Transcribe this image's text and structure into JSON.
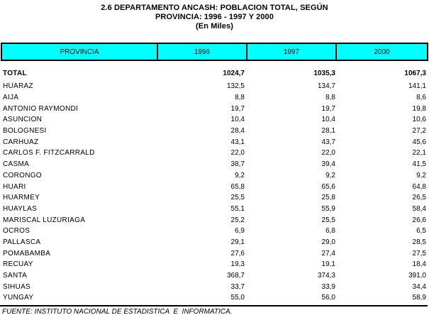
{
  "title": {
    "line1": "2.6 DEPARTAMENTO ANCASH: POBLACION TOTAL, SEGÚN",
    "line2": "PROVINCIA: 1996 - 1997 Y 2000",
    "line3": "(En Miles)"
  },
  "table": {
    "header_bg": "#00FFFF",
    "columns": [
      "PROVINCIA",
      "1996",
      "1997",
      "2000"
    ],
    "total_row": {
      "label": "TOTAL",
      "values": [
        "1024,7",
        "1035,3",
        "1067,3"
      ]
    },
    "rows": [
      {
        "label": "HUARAZ",
        "values": [
          "132,5",
          "134,7",
          "141,1"
        ]
      },
      {
        "label": "AIJA",
        "values": [
          "8,8",
          "8,8",
          "8,6"
        ]
      },
      {
        "label": "ANTONIO RAYMONDI",
        "values": [
          "19,7",
          "19,7",
          "19,8"
        ]
      },
      {
        "label": "ASUNCION",
        "values": [
          "10,4",
          "10,4",
          "10,6"
        ]
      },
      {
        "label": "BOLOGNESI",
        "values": [
          "28,4",
          "28,1",
          "27,2"
        ]
      },
      {
        "label": "CARHUAZ",
        "values": [
          "43,1",
          "43,7",
          "45,6"
        ]
      },
      {
        "label": "CARLOS F. FITZCARRALD",
        "values": [
          "22,0",
          "22,0",
          "22,1"
        ]
      },
      {
        "label": "CASMA",
        "values": [
          "38,7",
          "39,4",
          "41,5"
        ]
      },
      {
        "label": "CORONGO",
        "values": [
          "9,2",
          "9,2",
          "9,2"
        ]
      },
      {
        "label": "HUARI",
        "values": [
          "65,8",
          "65,6",
          "64,8"
        ]
      },
      {
        "label": "HUARMEY",
        "values": [
          "25,5",
          "25,8",
          "26,5"
        ]
      },
      {
        "label": "HUAYLAS",
        "values": [
          "55,1",
          "55,9",
          "58,4"
        ]
      },
      {
        "label": "MARISCAL LUZURIAGA",
        "values": [
          "25,2",
          "25,5",
          "26,6"
        ]
      },
      {
        "label": "OCROS",
        "values": [
          "6,9",
          "6,8",
          "6,5"
        ]
      },
      {
        "label": "PALLASCA",
        "values": [
          "29,1",
          "29,0",
          "28,5"
        ]
      },
      {
        "label": "POMABAMBA",
        "values": [
          "27,6",
          "27,4",
          "27,5"
        ]
      },
      {
        "label": "RECUAY",
        "values": [
          "19,3",
          "19,1",
          "18,4"
        ]
      },
      {
        "label": "SANTA",
        "values": [
          "368,7",
          "374,3",
          "391,0"
        ]
      },
      {
        "label": "SIHUAS",
        "values": [
          "33,7",
          "33,9",
          "34,4"
        ]
      },
      {
        "label": "YUNGAY",
        "values": [
          "55,0",
          "56,0",
          "58,9"
        ]
      }
    ]
  },
  "footer": {
    "source": "FUENTE: INSTITUTO NACIONAL DE ESTADISTICA  E  INFORMATICA."
  }
}
